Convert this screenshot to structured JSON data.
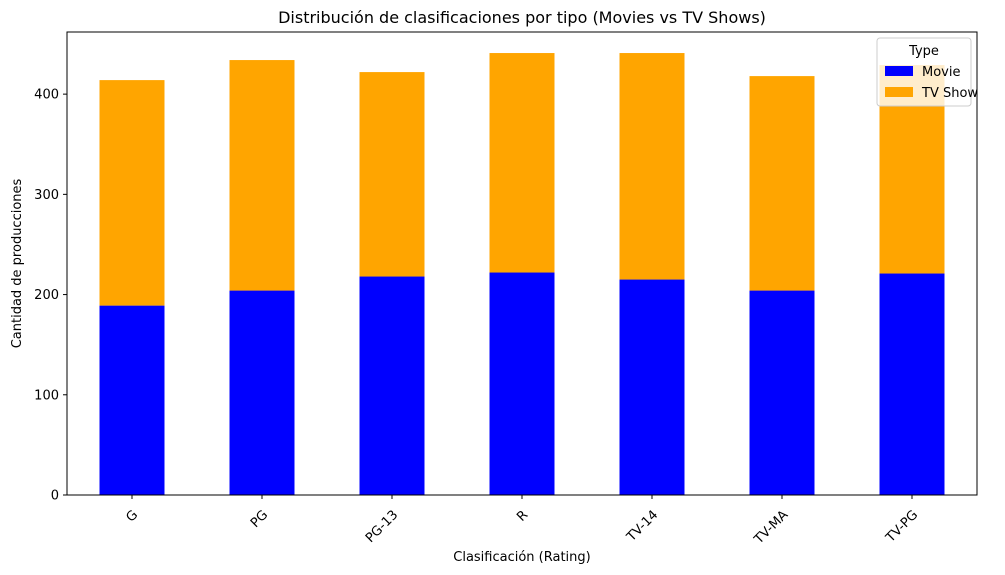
{
  "chart_data": {
    "type": "bar",
    "stacked": true,
    "title": "Distribución de clasificaciones por tipo (Movies vs TV Shows)",
    "xlabel": "Clasificación (Rating)",
    "ylabel": "Cantidad de producciones",
    "categories": [
      "G",
      "PG",
      "PG-13",
      "R",
      "TV-14",
      "TV-MA",
      "TV-PG"
    ],
    "series": [
      {
        "name": "Movie",
        "color": "#0000ff",
        "values": [
          189,
          204,
          218,
          222,
          215,
          204,
          221
        ]
      },
      {
        "name": "TV Show",
        "color": "#ffa500",
        "values": [
          225,
          230,
          204,
          219,
          226,
          214,
          208
        ]
      }
    ],
    "ylim": [
      0,
      462
    ],
    "yticks": [
      0,
      100,
      200,
      300,
      400
    ],
    "grid": false,
    "legend": {
      "title": "Type",
      "placement": "top-right"
    },
    "xtick_rotation": 45
  }
}
